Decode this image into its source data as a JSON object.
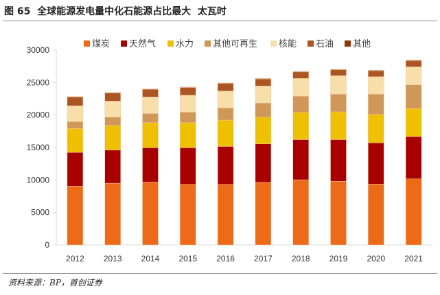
{
  "chart_data": {
    "type": "bar",
    "stacked": true,
    "title": "图 65  全球能源发电量中化石能源占比最大  太瓦时",
    "xlabel": "",
    "ylabel": "",
    "ylim": [
      0,
      30000
    ],
    "yticks": [
      0,
      5000,
      10000,
      15000,
      20000,
      25000,
      30000
    ],
    "legend_position": "top",
    "categories": [
      "2012",
      "2013",
      "2014",
      "2015",
      "2016",
      "2017",
      "2018",
      "2019",
      "2020",
      "2021"
    ],
    "series": [
      {
        "name": "煤炭",
        "color": "#ED6A18",
        "values": [
          9050,
          9500,
          9680,
          9330,
          9330,
          9650,
          10030,
          9790,
          9370,
          10170
        ]
      },
      {
        "name": "天然气",
        "color": "#A80000",
        "values": [
          5200,
          5100,
          5280,
          5630,
          5840,
          5910,
          6190,
          6430,
          6360,
          6510
        ]
      },
      {
        "name": "水力",
        "color": "#EEC000",
        "values": [
          3670,
          3800,
          3870,
          3870,
          4050,
          4120,
          4190,
          4270,
          4370,
          4330
        ]
      },
      {
        "name": "其他可再生",
        "color": "#D09858",
        "values": [
          1060,
          1270,
          1410,
          1620,
          1870,
          2180,
          2500,
          2740,
          3130,
          3630
        ]
      },
      {
        "name": "核能",
        "color": "#F8DFAA",
        "values": [
          2450,
          2470,
          2540,
          2600,
          2600,
          2610,
          2720,
          2820,
          2670,
          2780
        ]
      },
      {
        "name": "石油",
        "color": "#AA5522",
        "values": [
          1350,
          1270,
          1190,
          1200,
          1200,
          1090,
          1010,
          910,
          920,
          910
        ]
      },
      {
        "name": "其他",
        "color": "#8B3A0A",
        "values": [
          70,
          60,
          60,
          60,
          60,
          70,
          80,
          80,
          80,
          120
        ]
      }
    ]
  },
  "source": "资料来源：BP，首创证券"
}
